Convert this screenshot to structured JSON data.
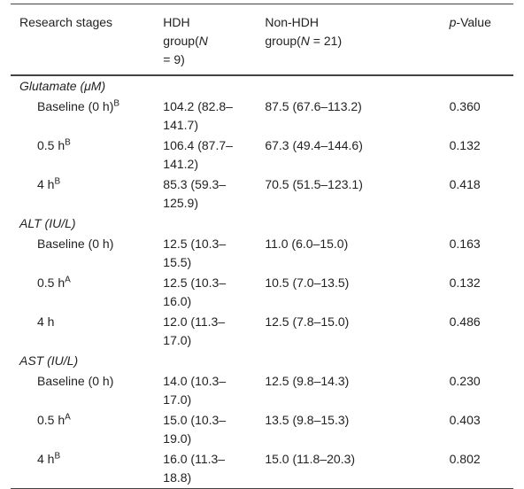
{
  "header": {
    "stages": "Research stages",
    "hdh": {
      "name": "HDH",
      "group": "group(",
      "n": "N",
      "count": " = 9)"
    },
    "non_hdh": {
      "name": "Non-HDH",
      "group": "group(",
      "n": "N",
      "count": " = 21)"
    },
    "p": {
      "italic": "p",
      "rest": "-Value"
    }
  },
  "groups": [
    {
      "name": "Glutamate (μM)",
      "rows": [
        {
          "stage": "Baseline",
          "time": "(0 h)",
          "sup": "B",
          "hdh": "104.2 (82.8–141.7)",
          "non_hdh": "87.5 (67.6–113.2)",
          "p": "0.360"
        },
        {
          "stage": "0.5 h",
          "sup": "B",
          "hdh": "106.4 (87.7–141.2)",
          "non_hdh": "67.3 (49.4–144.6)",
          "p": "0.132"
        },
        {
          "stage": "4 h",
          "sup": "B",
          "hdh": "85.3 (59.3–125.9)",
          "non_hdh": "70.5 (51.5–123.1)",
          "p": "0.418"
        }
      ]
    },
    {
      "name": "ALT (IU/L)",
      "rows": [
        {
          "stage": "Baseline",
          "time": "(0 h)",
          "hdh": "12.5 (10.3–15.5)",
          "non_hdh": "11.0 (6.0–15.0)",
          "p": "0.163"
        },
        {
          "stage": "0.5 h",
          "sup": "A",
          "hdh": "12.5 (10.3–16.0)",
          "non_hdh": "10.5 (7.0–13.5)",
          "p": "0.132"
        },
        {
          "stage": "4 h",
          "hdh": "12.0 (11.3–17.0)",
          "non_hdh": "12.5 (7.8–15.0)",
          "p": "0.486"
        }
      ]
    },
    {
      "name": "AST (IU/L)",
      "rows": [
        {
          "stage": "Baseline",
          "time": "(0 h)",
          "hdh": "14.0 (10.3–17.0)",
          "non_hdh": "12.5 (9.8–14.3)",
          "p": "0.230"
        },
        {
          "stage": "0.5 h",
          "sup": "A",
          "hdh": "15.0 (10.3–19.0)",
          "non_hdh": "13.5 (9.8–15.3)",
          "p": "0.403"
        },
        {
          "stage": "4 h",
          "sup": "B",
          "hdh": "16.0 (11.3–18.8)",
          "non_hdh": "15.0 (11.8–20.3)",
          "p": "0.802"
        }
      ]
    }
  ]
}
